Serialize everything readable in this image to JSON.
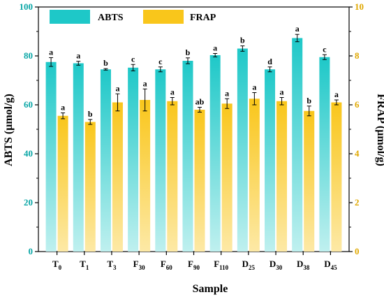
{
  "chart_data": {
    "type": "bar",
    "xlabel": "Sample",
    "ylabel_left": "ABTS (μmol/g)",
    "ylabel_right": "FRAP (μmol/g)",
    "ylim_left": [
      0,
      100
    ],
    "ylim_right": [
      0,
      10
    ],
    "yticks_left": [
      "0",
      "20",
      "40",
      "60",
      "80",
      "100"
    ],
    "yticks_right": [
      "0",
      "2",
      "4",
      "6",
      "8",
      "10"
    ],
    "categories": [
      {
        "base": "T",
        "sub": "0"
      },
      {
        "base": "T",
        "sub": "1"
      },
      {
        "base": "T",
        "sub": "3"
      },
      {
        "base": "F",
        "sub": "30"
      },
      {
        "base": "F",
        "sub": "60"
      },
      {
        "base": "F",
        "sub": "90"
      },
      {
        "base": "F",
        "sub": "110"
      },
      {
        "base": "D",
        "sub": "25"
      },
      {
        "base": "D",
        "sub": "30"
      },
      {
        "base": "D",
        "sub": "38"
      },
      {
        "base": "D",
        "sub": "45"
      }
    ],
    "series": [
      {
        "name": "ABTS",
        "axis": "left",
        "color": "#1ec8c8",
        "values": [
          77.5,
          77.0,
          74.5,
          75.2,
          74.5,
          78.0,
          80.3,
          83.0,
          74.5,
          87.3,
          79.5
        ],
        "errors": [
          1.8,
          0.8,
          0.3,
          1.3,
          1.0,
          1.2,
          0.7,
          1.1,
          1.0,
          1.5,
          1.0
        ],
        "labels": [
          "a",
          "a",
          "b",
          "c",
          "c",
          "b",
          "a",
          "b",
          "d",
          "a",
          "c"
        ]
      },
      {
        "name": "FRAP",
        "axis": "right",
        "color": "#f9c61b",
        "values": [
          5.55,
          5.3,
          6.1,
          6.2,
          6.15,
          5.8,
          6.05,
          6.25,
          6.15,
          5.75,
          6.1
        ],
        "errors": [
          0.12,
          0.1,
          0.35,
          0.45,
          0.15,
          0.1,
          0.2,
          0.25,
          0.15,
          0.2,
          0.1
        ],
        "labels": [
          "a",
          "b",
          "a",
          "a",
          "a",
          "ab",
          "a",
          "a",
          "a",
          "b",
          "a"
        ]
      }
    ],
    "legend_position": "top-left",
    "grid": false
  }
}
